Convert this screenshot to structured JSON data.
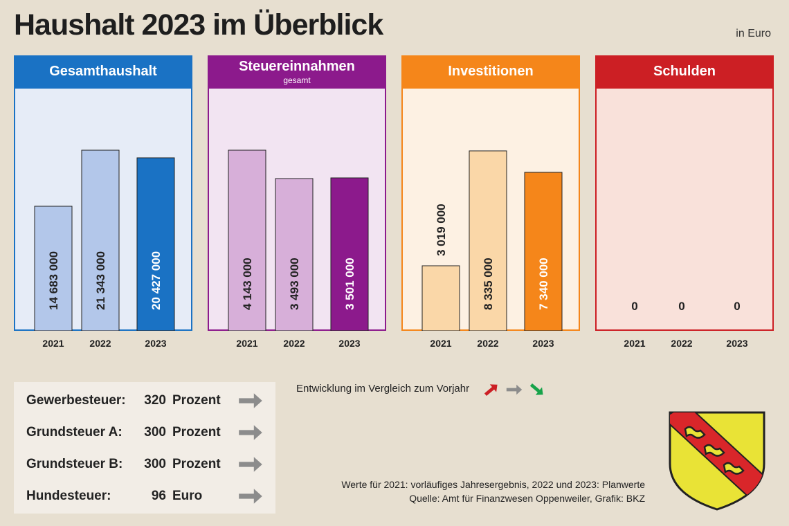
{
  "title": "Haushalt 2023 im Überblick",
  "unit": "in Euro",
  "chart_data": [
    {
      "type": "bar",
      "title": "Gesamthaushalt",
      "subtitle": "",
      "categories": [
        "2021",
        "2022",
        "2023"
      ],
      "values": [
        14683000,
        21343000,
        20427000
      ],
      "labels": [
        "14 683 000",
        "21 343 000",
        "20 427 000"
      ],
      "colors": [
        "#b3c7ea",
        "#b3c7ea",
        "#1a72c4"
      ],
      "head_color": "#1a72c4",
      "bg_color": "#e6ecf7",
      "border_color": "#1a72c4",
      "ylim": [
        0,
        26000000
      ],
      "label_pos": "inside"
    },
    {
      "type": "bar",
      "title": "Steuereinnahmen",
      "subtitle": "gesamt",
      "categories": [
        "2021",
        "2022",
        "2023"
      ],
      "values": [
        4143000,
        3493000,
        3501000
      ],
      "labels": [
        "4 143 000",
        "3 493 000",
        "3 501 000"
      ],
      "colors": [
        "#d7afd9",
        "#d7afd9",
        "#8c1a8c"
      ],
      "head_color": "#8c1a8c",
      "bg_color": "#f2e4f2",
      "border_color": "#8c1a8c",
      "ylim": [
        0,
        5040000
      ],
      "label_pos": "inside"
    },
    {
      "type": "bar",
      "title": "Investitionen",
      "subtitle": "",
      "categories": [
        "2021",
        "2022",
        "2023"
      ],
      "values": [
        3019000,
        8335000,
        7340000
      ],
      "labels": [
        "3 019 000",
        "8 335 000",
        "7 340 000"
      ],
      "colors": [
        "#fad7a8",
        "#fad7a8",
        "#f5861a"
      ],
      "head_color": "#f5861a",
      "bg_color": "#fdf1e3",
      "border_color": "#f5861a",
      "ylim": [
        0,
        10200000
      ],
      "label_pos": "inside"
    },
    {
      "type": "bar",
      "title": "Schulden",
      "subtitle": "",
      "categories": [
        "2021",
        "2022",
        "2023"
      ],
      "values": [
        0,
        0,
        0
      ],
      "labels": [
        "0",
        "0",
        "0"
      ],
      "colors": [
        "#e8c2b8",
        "#e8c2b8",
        "#c9302c"
      ],
      "head_color": "#cc1f24",
      "bg_color": "#f9e1da",
      "border_color": "#cc1f24",
      "ylim": [
        0,
        10000000
      ],
      "label_pos": "inside"
    }
  ],
  "taxes": [
    {
      "label": "Gewerbesteuer:",
      "value": "320",
      "unit": "Prozent",
      "trend": "same"
    },
    {
      "label": "Grundsteuer A:",
      "value": "300",
      "unit": "Prozent",
      "trend": "same"
    },
    {
      "label": "Grundsteuer B:",
      "value": "300",
      "unit": "Prozent",
      "trend": "same"
    },
    {
      "label": "Hundesteuer:",
      "value": "96",
      "unit": "Euro",
      "trend": "same"
    }
  ],
  "legend": {
    "text": "Entwicklung im Vergleich zum Vorjahr",
    "up_color": "#cc1f24",
    "same_color": "#8c8c8c",
    "down_color": "#17a34a"
  },
  "footer": {
    "line1": "Werte für 2021: vorläufiges Jahresergebnis, 2022 und 2023: Planwerte",
    "line2": "Quelle: Amt für Finanzwesen Oppenweiler, Grafik: BKZ"
  },
  "crest": {
    "shield_color": "#e9e336",
    "band_color": "#d9262a",
    "outline_color": "#222222"
  }
}
